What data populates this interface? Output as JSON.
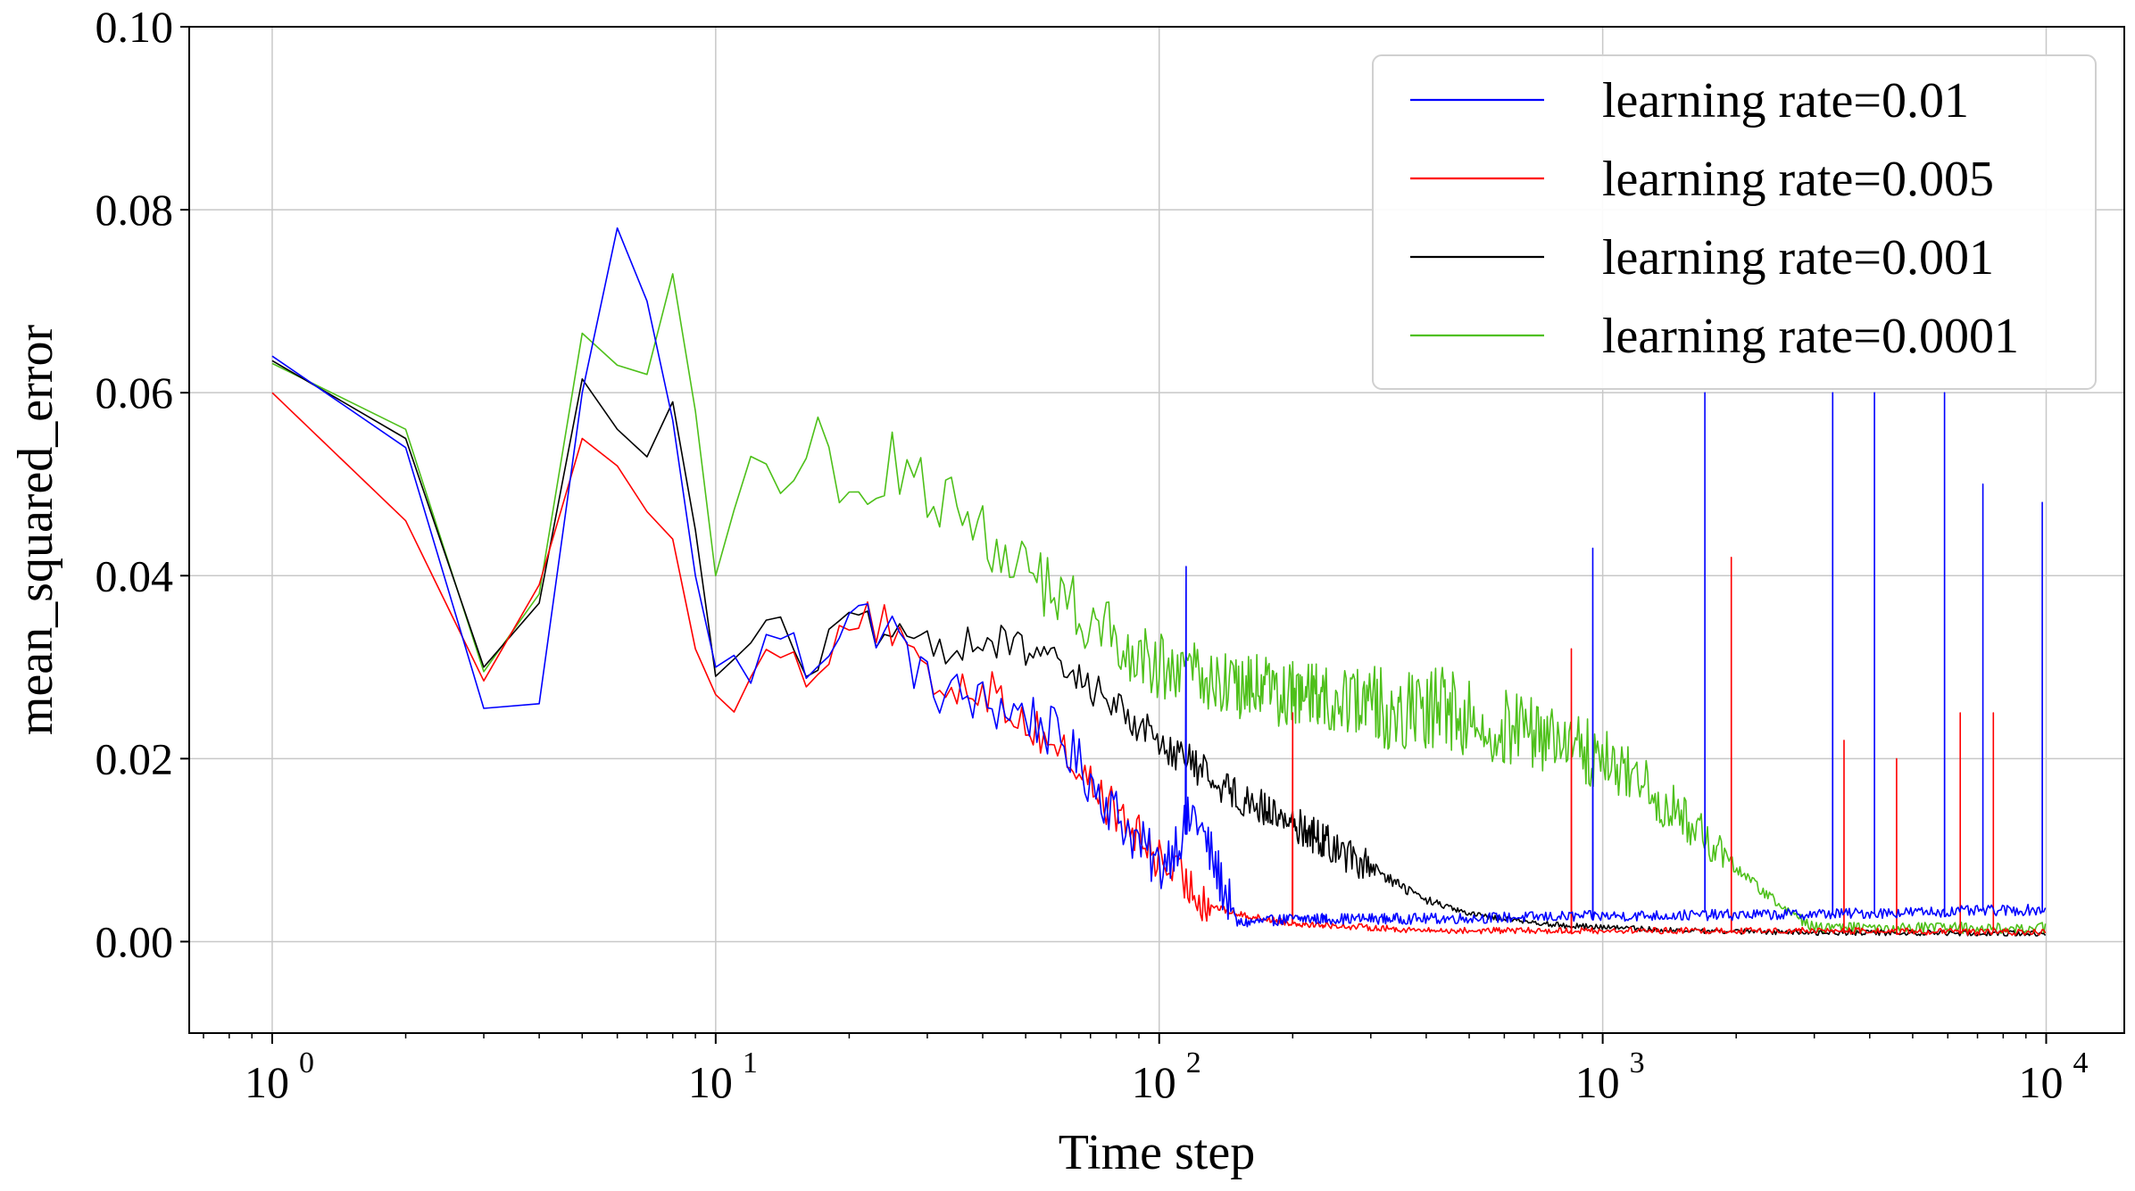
{
  "chart_data": {
    "type": "line",
    "title": "",
    "xlabel": "Time step",
    "ylabel": "mean_squared_error",
    "xscale": "log",
    "xlim": [
      0.65,
      15000
    ],
    "ylim": [
      -0.01,
      0.1
    ],
    "grid": true,
    "legend_position": "top-right",
    "y_ticks": [
      "0.00",
      "0.02",
      "0.04",
      "0.06",
      "0.08",
      "0.10"
    ],
    "y_tick_values": [
      0.0,
      0.02,
      0.04,
      0.06,
      0.08,
      0.1
    ],
    "x_ticks": [
      {
        "value": 1,
        "base": "10",
        "exp": "0"
      },
      {
        "value": 10,
        "base": "10",
        "exp": "1"
      },
      {
        "value": 100,
        "base": "10",
        "exp": "2"
      },
      {
        "value": 1000,
        "base": "10",
        "exp": "3"
      },
      {
        "value": 10000,
        "base": "10",
        "exp": "4"
      }
    ],
    "series": [
      {
        "name": "learning rate=0.01",
        "color": "#0000ff",
        "points": [
          [
            1,
            0.064
          ],
          [
            2,
            0.054
          ],
          [
            3,
            0.0255
          ],
          [
            4,
            0.026
          ],
          [
            5,
            0.06
          ],
          [
            6,
            0.078
          ],
          [
            7,
            0.07
          ],
          [
            8,
            0.057
          ],
          [
            9,
            0.04
          ],
          [
            10,
            0.03
          ],
          [
            12,
            0.03
          ],
          [
            14,
            0.034
          ],
          [
            16,
            0.03
          ],
          [
            20,
            0.036
          ],
          [
            25,
            0.034
          ],
          [
            30,
            0.028
          ],
          [
            40,
            0.026
          ],
          [
            50,
            0.025
          ],
          [
            60,
            0.022
          ],
          [
            80,
            0.014
          ],
          [
            100,
            0.008
          ],
          [
            120,
            0.014
          ],
          [
            150,
            0.002
          ],
          [
            200,
            0.0025
          ],
          [
            400,
            0.0025
          ],
          [
            1000,
            0.0028
          ],
          [
            3000,
            0.003
          ],
          [
            10000,
            0.0035
          ]
        ],
        "noise_mid": 0.006,
        "noise_tail": 0.0012,
        "spikes": [
          [
            115,
            0.041
          ],
          [
            950,
            0.043
          ],
          [
            1700,
            0.06
          ],
          [
            3300,
            0.06
          ],
          [
            4100,
            0.06
          ],
          [
            5900,
            0.06
          ],
          [
            7200,
            0.05
          ],
          [
            9800,
            0.048
          ]
        ]
      },
      {
        "name": "learning rate=0.005",
        "color": "#ff0000",
        "points": [
          [
            1,
            0.06
          ],
          [
            2,
            0.046
          ],
          [
            3,
            0.0285
          ],
          [
            4,
            0.039
          ],
          [
            5,
            0.055
          ],
          [
            6,
            0.052
          ],
          [
            7,
            0.047
          ],
          [
            8,
            0.044
          ],
          [
            9,
            0.032
          ],
          [
            10,
            0.027
          ],
          [
            12,
            0.028
          ],
          [
            14,
            0.033
          ],
          [
            16,
            0.029
          ],
          [
            20,
            0.036
          ],
          [
            25,
            0.034
          ],
          [
            30,
            0.028
          ],
          [
            40,
            0.028
          ],
          [
            50,
            0.024
          ],
          [
            60,
            0.021
          ],
          [
            80,
            0.014
          ],
          [
            100,
            0.009
          ],
          [
            130,
            0.004
          ],
          [
            150,
            0.003
          ],
          [
            200,
            0.002
          ],
          [
            400,
            0.0012
          ],
          [
            1000,
            0.0012
          ],
          [
            3000,
            0.0012
          ],
          [
            10000,
            0.001
          ]
        ],
        "noise_mid": 0.005,
        "noise_tail": 0.0007,
        "spikes": [
          [
            200,
            0.025
          ],
          [
            850,
            0.032
          ],
          [
            1950,
            0.042
          ],
          [
            3500,
            0.022
          ],
          [
            4600,
            0.02
          ],
          [
            6400,
            0.025
          ],
          [
            7600,
            0.025
          ]
        ]
      },
      {
        "name": "learning rate=0.001",
        "color": "#000000",
        "points": [
          [
            1,
            0.0635
          ],
          [
            2,
            0.055
          ],
          [
            3,
            0.03
          ],
          [
            4,
            0.037
          ],
          [
            5,
            0.0615
          ],
          [
            6,
            0.056
          ],
          [
            7,
            0.053
          ],
          [
            8,
            0.059
          ],
          [
            9,
            0.045
          ],
          [
            10,
            0.029
          ],
          [
            12,
            0.034
          ],
          [
            14,
            0.034
          ],
          [
            16,
            0.03
          ],
          [
            20,
            0.035
          ],
          [
            25,
            0.033
          ],
          [
            30,
            0.032
          ],
          [
            40,
            0.033
          ],
          [
            50,
            0.032
          ],
          [
            70,
            0.028
          ],
          [
            100,
            0.022
          ],
          [
            150,
            0.016
          ],
          [
            200,
            0.013
          ],
          [
            300,
            0.008
          ],
          [
            400,
            0.0045
          ],
          [
            500,
            0.003
          ],
          [
            800,
            0.0018
          ],
          [
            1500,
            0.0012
          ],
          [
            3000,
            0.001
          ],
          [
            10000,
            0.0009
          ]
        ],
        "noise_mid": 0.004,
        "noise_tail": 0.0006,
        "spikes": []
      },
      {
        "name": "learning rate=0.0001",
        "color": "#4ec01a",
        "points": [
          [
            1,
            0.0632
          ],
          [
            2,
            0.056
          ],
          [
            3,
            0.0295
          ],
          [
            4,
            0.038
          ],
          [
            5,
            0.0665
          ],
          [
            6,
            0.063
          ],
          [
            7,
            0.062
          ],
          [
            8,
            0.073
          ],
          [
            9,
            0.058
          ],
          [
            10,
            0.04
          ],
          [
            12,
            0.052
          ],
          [
            14,
            0.048
          ],
          [
            16,
            0.055
          ],
          [
            20,
            0.05
          ],
          [
            25,
            0.052
          ],
          [
            30,
            0.05
          ],
          [
            40,
            0.045
          ],
          [
            50,
            0.04
          ],
          [
            70,
            0.035
          ],
          [
            100,
            0.03
          ],
          [
            150,
            0.028
          ],
          [
            200,
            0.027
          ],
          [
            300,
            0.026
          ],
          [
            500,
            0.025
          ],
          [
            800,
            0.022
          ],
          [
            1000,
            0.02
          ],
          [
            1500,
            0.014
          ],
          [
            2000,
            0.008
          ],
          [
            2500,
            0.004
          ],
          [
            3000,
            0.0015
          ],
          [
            5000,
            0.0015
          ],
          [
            10000,
            0.0015
          ]
        ],
        "noise_mid": 0.0075,
        "noise_tail": 0.0012,
        "spikes": []
      }
    ]
  }
}
